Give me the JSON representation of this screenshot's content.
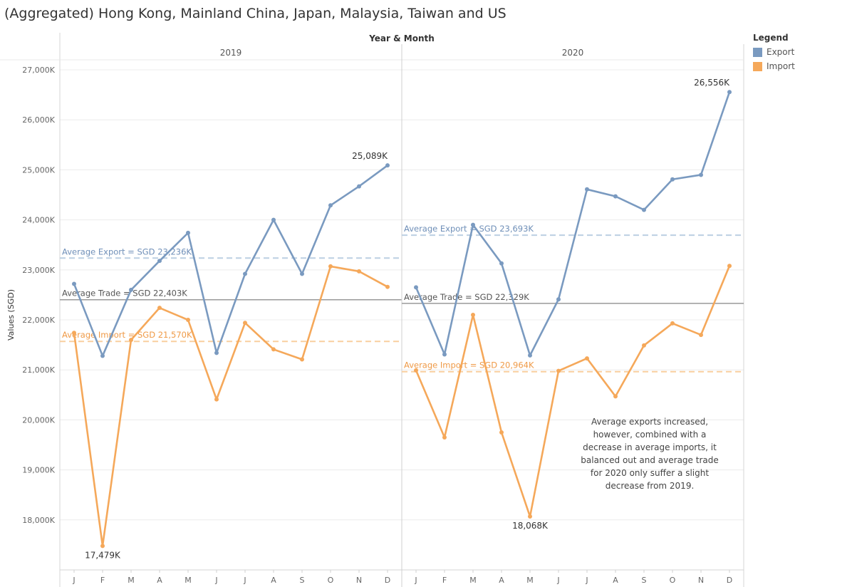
{
  "title": "(Aggregated) Hong Kong, Mainland China, Japan, Malaysia, Taiwan and US",
  "legend": {
    "title": "Legend",
    "items": [
      {
        "label": "Export",
        "color": "#7a9ac0"
      },
      {
        "label": "Import",
        "color": "#f5a85a"
      }
    ]
  },
  "chart_data": {
    "type": "line",
    "title": "(Aggregated) Hong Kong, Mainland China, Japan, Malaysia, Taiwan and US",
    "column_header": "Year & Month",
    "ylabel": "Values (SGD)",
    "ylim": [
      17000,
      27200
    ],
    "yticks": [
      18000,
      19000,
      20000,
      21000,
      22000,
      23000,
      24000,
      25000,
      26000,
      27000
    ],
    "ytick_labels": [
      "18,000K",
      "19,000K",
      "20,000K",
      "21,000K",
      "22,000K",
      "23,000K",
      "24,000K",
      "25,000K",
      "26,000K",
      "27,000K"
    ],
    "month_labels": [
      "J",
      "F",
      "M",
      "A",
      "M",
      "J",
      "J",
      "A",
      "S",
      "O",
      "N",
      "D"
    ],
    "grid": true,
    "legend_position": "top-right",
    "colors": {
      "export": "#7a9ac0",
      "import": "#f5a85a",
      "trade": "#9a9a9a"
    },
    "panels": [
      {
        "year": "2019",
        "series": [
          {
            "name": "Export",
            "values": [
              22720,
              21280,
              22600,
              23180,
              23740,
              21340,
              22920,
              24000,
              22920,
              24290,
              24670,
              25089
            ]
          },
          {
            "name": "Import",
            "values": [
              21740,
              17479,
              21600,
              22240,
              22000,
              20410,
              21940,
              21410,
              21210,
              23070,
              22970,
              22660
            ]
          }
        ],
        "reference_lines": [
          {
            "series": "Export",
            "value": 23236,
            "label": "Average Export = SGD 23,236K"
          },
          {
            "series": "Trade",
            "value": 22403,
            "label": "Average Trade = SGD 22,403K"
          },
          {
            "series": "Import",
            "value": 21570,
            "label": "Average Import = SGD 21,570K"
          }
        ],
        "data_labels": [
          {
            "series": "Export",
            "index": 11,
            "text": "25,089K"
          },
          {
            "series": "Import",
            "index": 1,
            "text": "17,479K"
          }
        ]
      },
      {
        "year": "2020",
        "series": [
          {
            "name": "Export",
            "values": [
              22650,
              21310,
              23900,
              23130,
              21290,
              22410,
              24610,
              24470,
              24200,
              24810,
              24900,
              26556
            ]
          },
          {
            "name": "Import",
            "values": [
              20990,
              19650,
              22100,
              19750,
              18068,
              20980,
              21230,
              20470,
              21490,
              21930,
              21700,
              23080
            ]
          }
        ],
        "reference_lines": [
          {
            "series": "Export",
            "value": 23693,
            "label": "Average Export = SGD 23,693K"
          },
          {
            "series": "Trade",
            "value": 22329,
            "label": "Average Trade = SGD 22,329K"
          },
          {
            "series": "Import",
            "value": 20964,
            "label": "Average Import = SGD 20,964K"
          }
        ],
        "data_labels": [
          {
            "series": "Export",
            "index": 11,
            "text": "26,556K"
          },
          {
            "series": "Import",
            "index": 4,
            "text": "18,068K"
          }
        ],
        "annotation": [
          "Average exports increased,",
          "however, combined with a",
          "decrease in average imports, it",
          "balanced out and average trade",
          "for 2020 only suffer a slight",
          "decrease from 2019."
        ]
      }
    ]
  }
}
